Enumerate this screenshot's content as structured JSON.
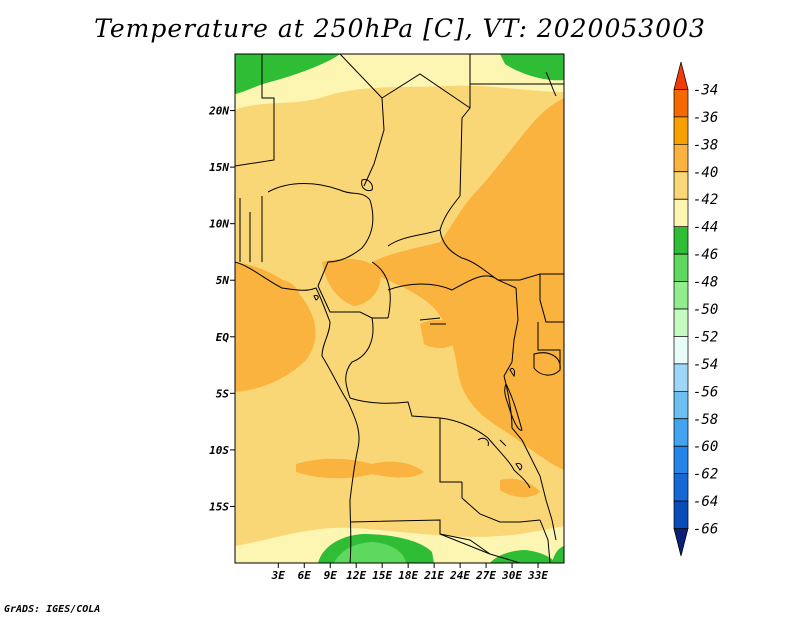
{
  "title": "Temperature at 250hPa [C], VT: 2020053003",
  "credit": "GrADS: IGES/COLA",
  "map": {
    "lat_range": [
      -20,
      25
    ],
    "lon_range": [
      -2,
      36
    ],
    "lat_ticks": [
      {
        "value": 20,
        "label": "20N"
      },
      {
        "value": 15,
        "label": "15N"
      },
      {
        "value": 10,
        "label": "10N"
      },
      {
        "value": 5,
        "label": "5N"
      },
      {
        "value": 0,
        "label": "EQ"
      },
      {
        "value": -5,
        "label": "5S"
      },
      {
        "value": -10,
        "label": "10S"
      },
      {
        "value": -15,
        "label": "15S"
      }
    ],
    "lon_ticks": [
      {
        "value": 3,
        "label": "3E"
      },
      {
        "value": 6,
        "label": "6E"
      },
      {
        "value": 9,
        "label": "9E"
      },
      {
        "value": 12,
        "label": "12E"
      },
      {
        "value": 15,
        "label": "15E"
      },
      {
        "value": 18,
        "label": "18E"
      },
      {
        "value": 21,
        "label": "21E"
      },
      {
        "value": 24,
        "label": "24E"
      },
      {
        "value": 27,
        "label": "27E"
      },
      {
        "value": 30,
        "label": "30E"
      },
      {
        "value": 33,
        "label": "33E"
      }
    ]
  },
  "colorbar": {
    "labels": [
      "-34",
      "-36",
      "-38",
      "-40",
      "-42",
      "-44",
      "-46",
      "-48",
      "-50",
      "-52",
      "-54",
      "-56",
      "-58",
      "-60",
      "-62",
      "-64",
      "-66"
    ],
    "colors": [
      "#f03c0a",
      "#f56a00",
      "#f8a000",
      "#f9b33e",
      "#fad776",
      "#fdf5b2",
      "#2fbd36",
      "#5fd85f",
      "#92ed8d",
      "#c5fbc1",
      "#e8fcf8",
      "#9fd6f7",
      "#6cbff3",
      "#42a4ef",
      "#2685e8",
      "#1669d5",
      "#0a4cb7",
      "#0a1f78"
    ]
  },
  "field": {
    "base_color": "#fad776",
    "colors": {
      "c40": "#f9b33e",
      "c42": "#fad776",
      "c44": "#fdf5b2",
      "c46": "#2fbd36",
      "c48": "#5fd85f"
    }
  }
}
